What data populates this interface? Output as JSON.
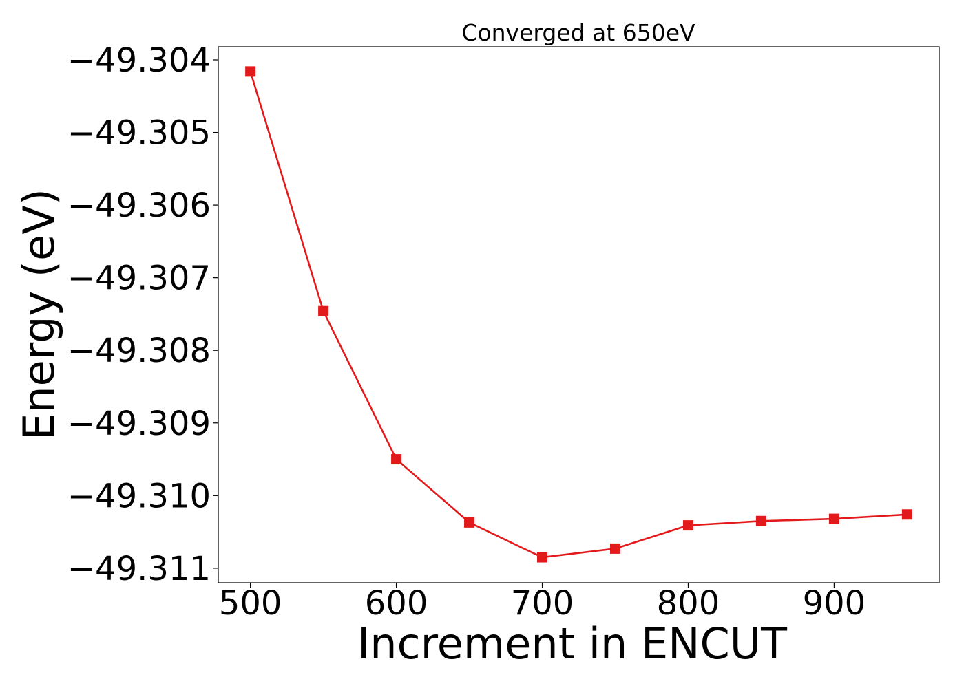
{
  "chart_data": {
    "type": "line",
    "title": "Converged at 650eV",
    "xlabel": "Increment in ENCUT",
    "ylabel": "Energy (eV)",
    "x": [
      500,
      550,
      600,
      650,
      700,
      750,
      800,
      850,
      900,
      950
    ],
    "series": [
      {
        "values": [
          -49.30416,
          -49.30746,
          -49.3095,
          -49.31037,
          -49.31085,
          -49.31073,
          -49.31041,
          -49.31035,
          -49.31032,
          -49.31026
        ],
        "color": "#e31a1c",
        "marker": "square"
      }
    ],
    "xlim": [
      478,
      972
    ],
    "ylim": [
      -49.3112,
      -49.30382
    ],
    "xticks": [
      500,
      600,
      700,
      800,
      900
    ],
    "xtick_labels": [
      "500",
      "600",
      "700",
      "800",
      "900"
    ],
    "yticks": [
      -49.311,
      -49.31,
      -49.309,
      -49.308,
      -49.307,
      -49.306,
      -49.305,
      -49.304
    ],
    "ytick_labels": [
      "−49.311",
      "−49.310",
      "−49.309",
      "−49.308",
      "−49.307",
      "−49.306",
      "−49.305",
      "−49.304"
    ],
    "grid": false,
    "legend": "none"
  }
}
